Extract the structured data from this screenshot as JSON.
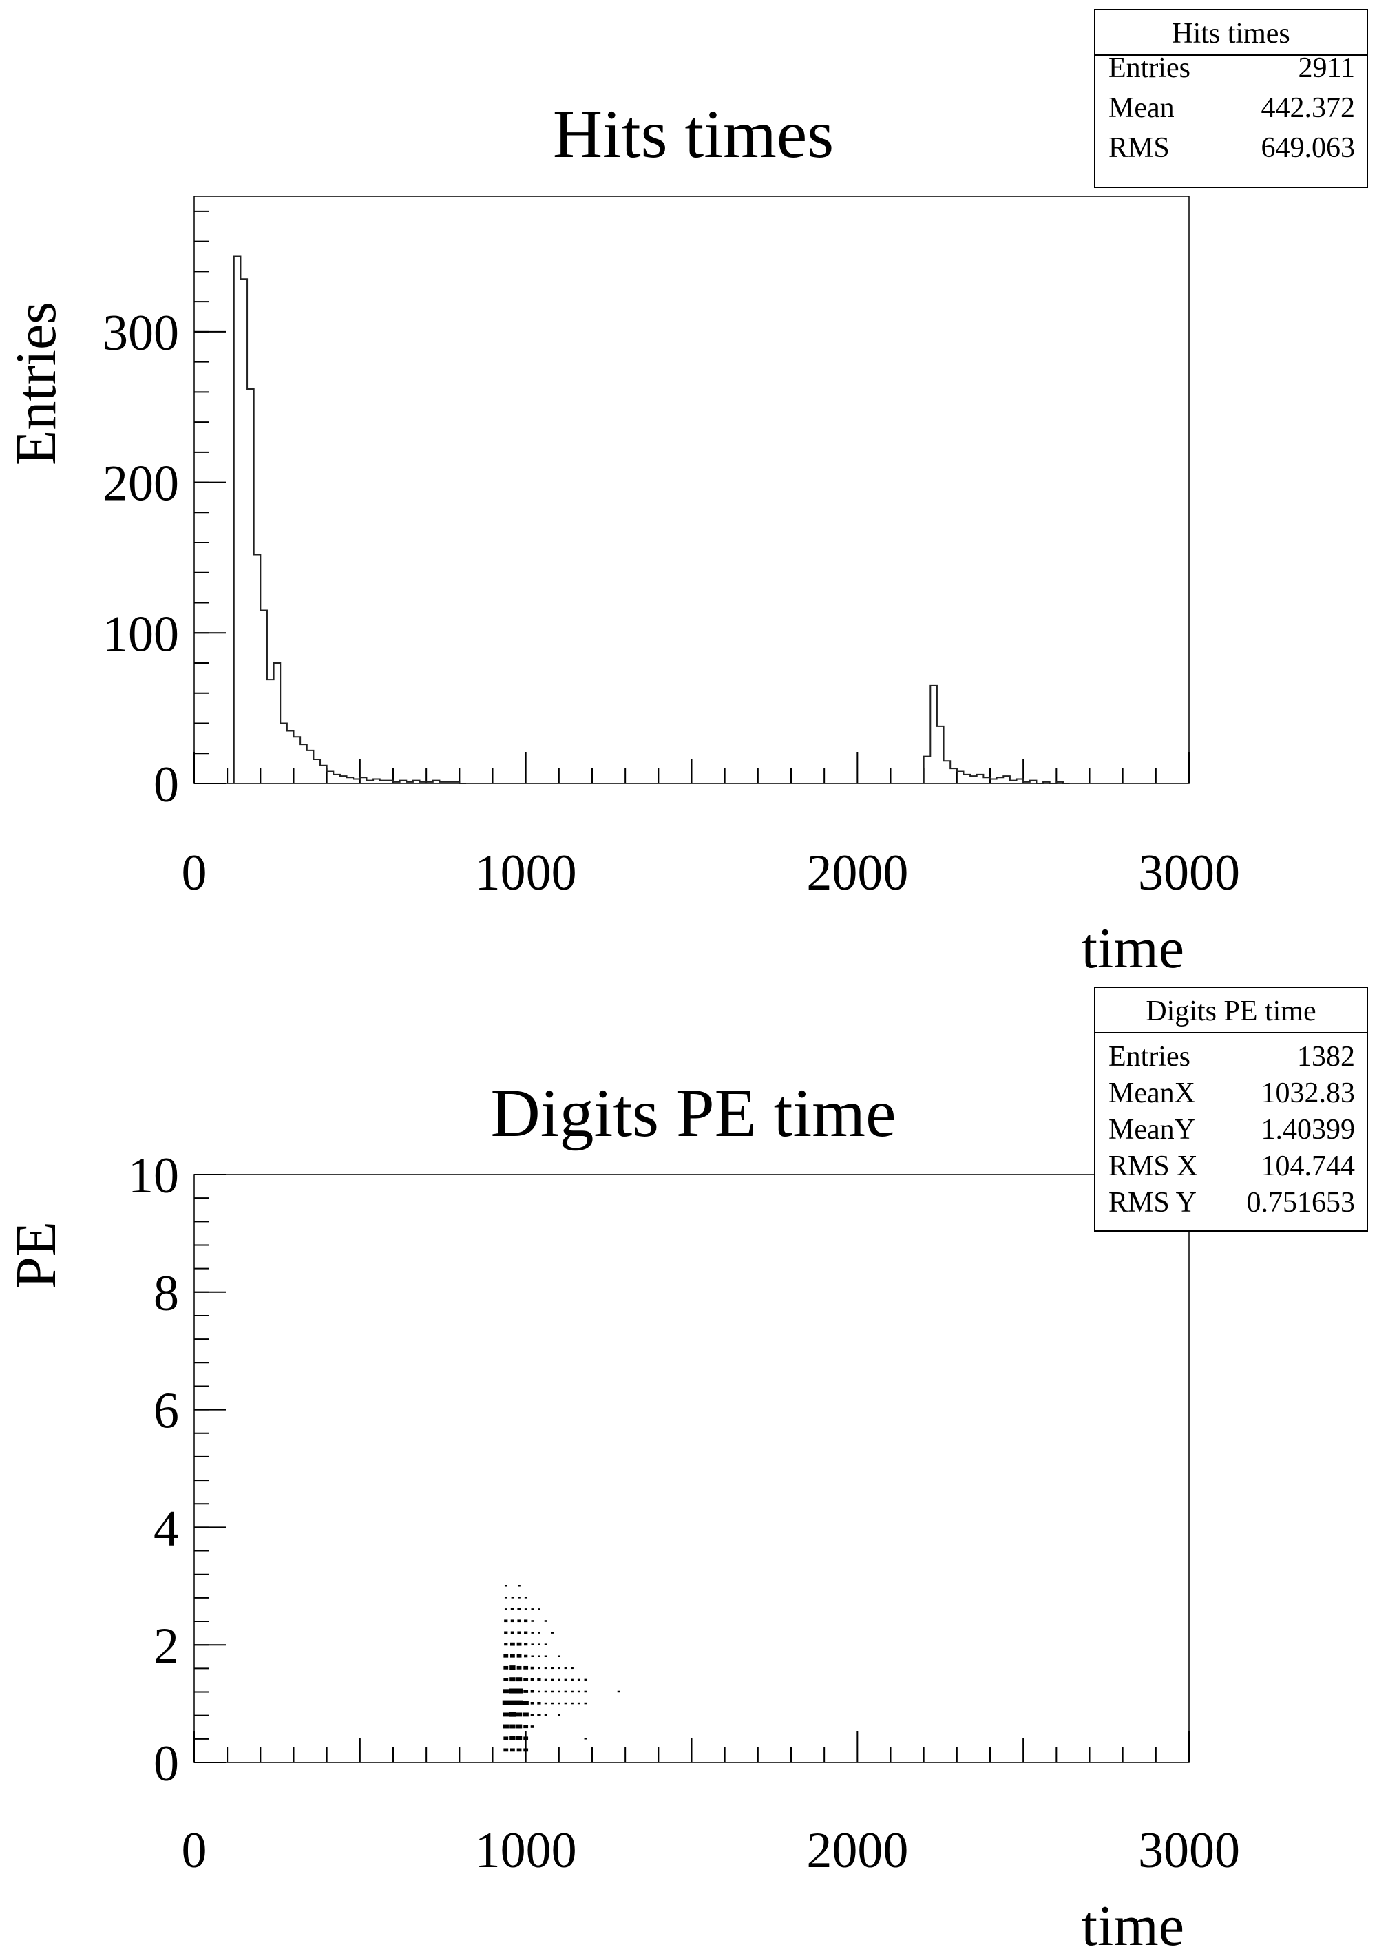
{
  "chart_data": [
    {
      "type": "histogram",
      "title": "Hits times",
      "xlabel": "time",
      "ylabel": "Entries",
      "xlim": [
        0,
        3000
      ],
      "ylim": [
        0,
        390
      ],
      "x_ticks": [
        "0",
        "1000",
        "2000",
        "3000"
      ],
      "y_ticks": [
        "0",
        "100",
        "200",
        "300"
      ],
      "y_tick_values": [
        0,
        100,
        200,
        300
      ],
      "x_tick_values": [
        0,
        1000,
        2000,
        3000
      ],
      "bin_width": 20,
      "bins": [
        [
          120,
          140,
          350
        ],
        [
          140,
          160,
          335
        ],
        [
          160,
          180,
          262
        ],
        [
          180,
          200,
          152
        ],
        [
          200,
          220,
          115
        ],
        [
          220,
          240,
          69
        ],
        [
          240,
          260,
          80
        ],
        [
          260,
          280,
          40
        ],
        [
          280,
          300,
          35
        ],
        [
          300,
          320,
          31
        ],
        [
          320,
          340,
          26
        ],
        [
          340,
          360,
          22
        ],
        [
          360,
          380,
          16
        ],
        [
          380,
          400,
          12
        ],
        [
          400,
          420,
          8
        ],
        [
          420,
          440,
          6
        ],
        [
          440,
          460,
          5
        ],
        [
          460,
          480,
          4
        ],
        [
          480,
          500,
          3
        ],
        [
          500,
          520,
          4
        ],
        [
          520,
          540,
          2
        ],
        [
          540,
          560,
          3
        ],
        [
          560,
          580,
          2
        ],
        [
          580,
          600,
          2
        ],
        [
          600,
          620,
          1
        ],
        [
          620,
          640,
          2
        ],
        [
          640,
          660,
          1
        ],
        [
          660,
          680,
          2
        ],
        [
          680,
          700,
          1
        ],
        [
          700,
          720,
          1
        ],
        [
          720,
          740,
          2
        ],
        [
          740,
          760,
          1
        ],
        [
          760,
          780,
          1
        ],
        [
          780,
          800,
          1
        ],
        [
          800,
          820,
          0
        ],
        [
          2200,
          2220,
          18
        ],
        [
          2220,
          2240,
          65
        ],
        [
          2240,
          2260,
          38
        ],
        [
          2260,
          2280,
          15
        ],
        [
          2280,
          2300,
          10
        ],
        [
          2300,
          2320,
          8
        ],
        [
          2320,
          2340,
          6
        ],
        [
          2340,
          2360,
          5
        ],
        [
          2360,
          2380,
          6
        ],
        [
          2380,
          2400,
          4
        ],
        [
          2400,
          2420,
          3
        ],
        [
          2420,
          2440,
          4
        ],
        [
          2440,
          2460,
          5
        ],
        [
          2460,
          2480,
          2
        ],
        [
          2480,
          2500,
          3
        ],
        [
          2500,
          2520,
          1
        ],
        [
          2520,
          2540,
          2
        ],
        [
          2540,
          2560,
          0
        ],
        [
          2560,
          2580,
          1
        ],
        [
          2580,
          2600,
          0
        ],
        [
          2600,
          2620,
          1
        ],
        [
          2620,
          2640,
          0
        ]
      ],
      "stats": {
        "title": "Hits times",
        "rows": [
          {
            "label": "Entries",
            "value": "2911"
          },
          {
            "label": "Mean",
            "value": "442.372"
          },
          {
            "label": "RMS",
            "value": "649.063"
          }
        ]
      }
    },
    {
      "type": "scatter",
      "title": "Digits PE time",
      "xlabel": "time",
      "ylabel": "PE",
      "xlim": [
        0,
        3000
      ],
      "ylim": [
        0,
        10
      ],
      "x_ticks": [
        "0",
        "1000",
        "2000",
        "3000"
      ],
      "y_ticks": [
        "0",
        "2",
        "4",
        "6",
        "8",
        "10"
      ],
      "y_tick_values": [
        0,
        2,
        4,
        6,
        8,
        10
      ],
      "x_tick_values": [
        0,
        1000,
        2000,
        3000
      ],
      "cells": [
        [
          940,
          0.2,
          3
        ],
        [
          940,
          0.4,
          3
        ],
        [
          940,
          0.6,
          4
        ],
        [
          940,
          0.8,
          4
        ],
        [
          940,
          1.0,
          5
        ],
        [
          940,
          1.2,
          4
        ],
        [
          940,
          1.4,
          3
        ],
        [
          940,
          1.6,
          3
        ],
        [
          940,
          1.8,
          3
        ],
        [
          940,
          2.0,
          2
        ],
        [
          940,
          2.2,
          2
        ],
        [
          940,
          2.4,
          2
        ],
        [
          940,
          2.6,
          1
        ],
        [
          940,
          2.8,
          1
        ],
        [
          940,
          3.0,
          1
        ],
        [
          960,
          0.2,
          3
        ],
        [
          960,
          0.4,
          4
        ],
        [
          960,
          0.6,
          4
        ],
        [
          960,
          0.8,
          5
        ],
        [
          960,
          1.0,
          5
        ],
        [
          960,
          1.2,
          5
        ],
        [
          960,
          1.4,
          4
        ],
        [
          960,
          1.6,
          4
        ],
        [
          960,
          1.8,
          3
        ],
        [
          960,
          2.0,
          3
        ],
        [
          960,
          2.2,
          2
        ],
        [
          960,
          2.4,
          2
        ],
        [
          960,
          2.6,
          2
        ],
        [
          960,
          2.8,
          1
        ],
        [
          980,
          0.2,
          3
        ],
        [
          980,
          0.4,
          4
        ],
        [
          980,
          0.6,
          4
        ],
        [
          980,
          0.8,
          4
        ],
        [
          980,
          1.0,
          5
        ],
        [
          980,
          1.2,
          5
        ],
        [
          980,
          1.4,
          4
        ],
        [
          980,
          1.6,
          3
        ],
        [
          980,
          1.8,
          3
        ],
        [
          980,
          2.0,
          3
        ],
        [
          980,
          2.2,
          2
        ],
        [
          980,
          2.4,
          2
        ],
        [
          980,
          2.6,
          2
        ],
        [
          980,
          2.8,
          1
        ],
        [
          980,
          3.0,
          1
        ],
        [
          1000,
          0.2,
          3
        ],
        [
          1000,
          0.4,
          3
        ],
        [
          1000,
          0.6,
          3
        ],
        [
          1000,
          0.8,
          4
        ],
        [
          1000,
          1.0,
          4
        ],
        [
          1000,
          1.2,
          3
        ],
        [
          1000,
          1.4,
          3
        ],
        [
          1000,
          1.6,
          3
        ],
        [
          1000,
          1.8,
          2
        ],
        [
          1000,
          2.0,
          2
        ],
        [
          1000,
          2.2,
          2
        ],
        [
          1000,
          2.4,
          2
        ],
        [
          1000,
          2.6,
          1
        ],
        [
          1000,
          2.8,
          1
        ],
        [
          1020,
          0.6,
          2
        ],
        [
          1020,
          0.8,
          2
        ],
        [
          1020,
          1.0,
          2
        ],
        [
          1020,
          1.2,
          2
        ],
        [
          1020,
          1.4,
          2
        ],
        [
          1020,
          1.6,
          2
        ],
        [
          1020,
          1.8,
          1
        ],
        [
          1020,
          2.0,
          1
        ],
        [
          1020,
          2.2,
          1
        ],
        [
          1020,
          2.4,
          1
        ],
        [
          1020,
          2.6,
          1
        ],
        [
          1040,
          0.8,
          2
        ],
        [
          1040,
          1.0,
          2
        ],
        [
          1040,
          1.2,
          1
        ],
        [
          1040,
          1.4,
          2
        ],
        [
          1040,
          1.6,
          1
        ],
        [
          1040,
          1.8,
          1
        ],
        [
          1040,
          2.0,
          1
        ],
        [
          1040,
          2.2,
          1
        ],
        [
          1040,
          2.6,
          1
        ],
        [
          1060,
          0.8,
          1
        ],
        [
          1060,
          1.0,
          1
        ],
        [
          1060,
          1.2,
          1
        ],
        [
          1060,
          1.4,
          1
        ],
        [
          1060,
          1.6,
          1
        ],
        [
          1060,
          1.8,
          1
        ],
        [
          1060,
          2.0,
          1
        ],
        [
          1060,
          2.4,
          1
        ],
        [
          1080,
          1.0,
          1
        ],
        [
          1080,
          1.2,
          1
        ],
        [
          1080,
          1.4,
          1
        ],
        [
          1080,
          1.6,
          1
        ],
        [
          1080,
          2.2,
          1
        ],
        [
          1100,
          0.8,
          1
        ],
        [
          1100,
          1.0,
          1
        ],
        [
          1100,
          1.2,
          1
        ],
        [
          1100,
          1.4,
          1
        ],
        [
          1100,
          1.6,
          1
        ],
        [
          1100,
          1.8,
          1
        ],
        [
          1120,
          1.0,
          1
        ],
        [
          1120,
          1.2,
          1
        ],
        [
          1120,
          1.4,
          1
        ],
        [
          1120,
          1.6,
          1
        ],
        [
          1140,
          1.0,
          1
        ],
        [
          1140,
          1.2,
          1
        ],
        [
          1140,
          1.4,
          1
        ],
        [
          1140,
          1.6,
          1
        ],
        [
          1160,
          1.0,
          1
        ],
        [
          1160,
          1.2,
          1
        ],
        [
          1160,
          1.4,
          1
        ],
        [
          1180,
          1.0,
          1
        ],
        [
          1180,
          1.2,
          1
        ],
        [
          1180,
          1.4,
          1
        ],
        [
          1180,
          0.4,
          1
        ],
        [
          1280,
          1.2,
          1
        ]
      ],
      "stats": {
        "title": "Digits PE time",
        "rows": [
          {
            "label": "Entries",
            "value": "1382"
          },
          {
            "label": "MeanX",
            "value": "1032.83"
          },
          {
            "label": "MeanY",
            "value": "1.40399"
          },
          {
            "label": "RMS X",
            "value": "104.744"
          },
          {
            "label": "RMS Y",
            "value": "0.751653"
          }
        ]
      }
    }
  ]
}
